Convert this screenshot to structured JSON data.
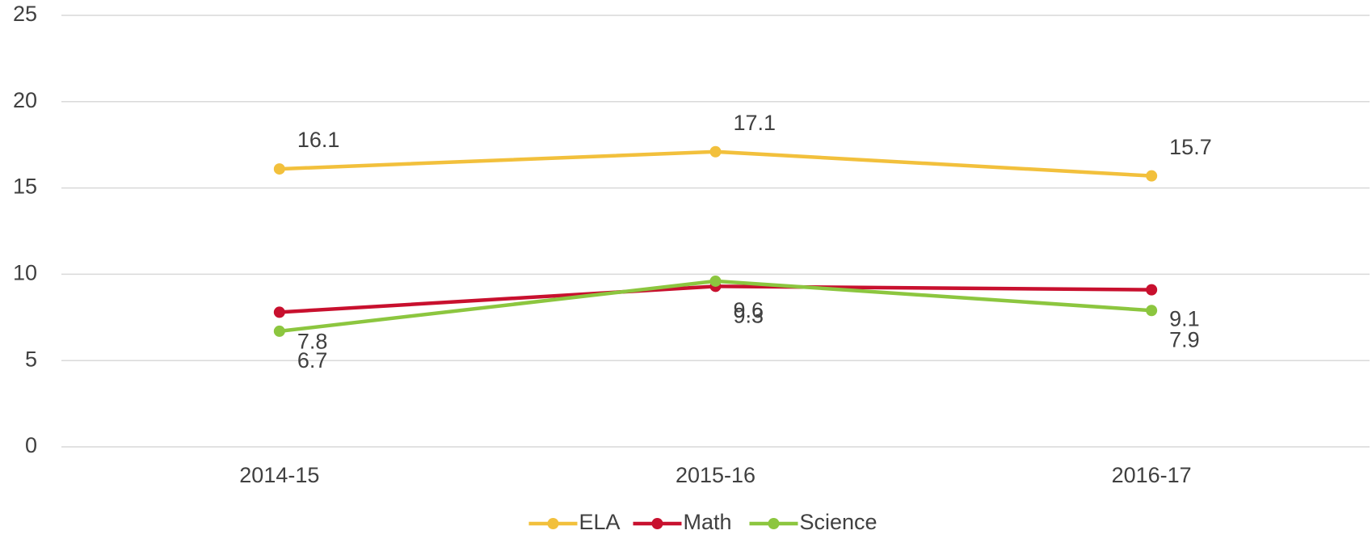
{
  "chart_data": {
    "type": "line",
    "categories": [
      "2014-15",
      "2015-16",
      "2016-17"
    ],
    "series": [
      {
        "name": "ELA",
        "color": "#f2c03c",
        "values": [
          16.1,
          17.1,
          15.7
        ]
      },
      {
        "name": "Math",
        "color": "#c8102e",
        "values": [
          7.8,
          9.3,
          9.1
        ]
      },
      {
        "name": "Science",
        "color": "#8cc63f",
        "values": [
          6.7,
          9.6,
          7.9
        ]
      }
    ],
    "ylim": [
      0,
      25
    ],
    "yticks": [
      0,
      5,
      10,
      15,
      20,
      25
    ],
    "grid": true,
    "legend": "bottom"
  }
}
